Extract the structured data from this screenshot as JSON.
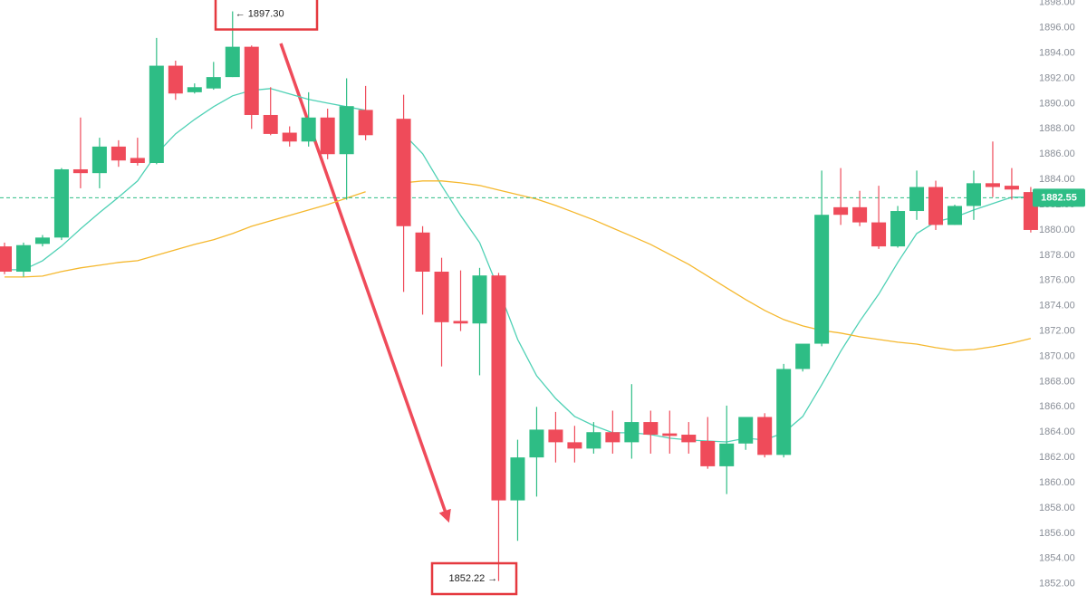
{
  "chart_data": {
    "type": "candlestick",
    "ylim": [
      1850.4,
      1898.2
    ],
    "yticks": [
      {
        "value": 1852,
        "label": "1852.00"
      },
      {
        "value": 1854,
        "label": "1854.00"
      },
      {
        "value": 1856,
        "label": "1856.00"
      },
      {
        "value": 1858,
        "label": "1858.00"
      },
      {
        "value": 1860,
        "label": "1860.00"
      },
      {
        "value": 1862,
        "label": "1862.00"
      },
      {
        "value": 1864,
        "label": "1864.00"
      },
      {
        "value": 1866,
        "label": "1866.00"
      },
      {
        "value": 1868,
        "label": "1868.00"
      },
      {
        "value": 1870,
        "label": "1870.00"
      },
      {
        "value": 1872,
        "label": "1872.00"
      },
      {
        "value": 1874,
        "label": "1874.00"
      },
      {
        "value": 1876,
        "label": "1876.00"
      },
      {
        "value": 1878,
        "label": "1878.00"
      },
      {
        "value": 1880,
        "label": "1880.00"
      },
      {
        "value": 1882,
        "label": "1882.00"
      },
      {
        "value": 1884,
        "label": "1884.00"
      },
      {
        "value": 1886,
        "label": "1886.00"
      },
      {
        "value": 1888,
        "label": "1888.00"
      },
      {
        "value": 1890,
        "label": "1890.00"
      },
      {
        "value": 1892,
        "label": "1892.00"
      },
      {
        "value": 1894,
        "label": "1894.00"
      },
      {
        "value": 1896,
        "label": "1896.00"
      },
      {
        "value": 1898,
        "label": "1898.00"
      }
    ],
    "grid": false,
    "up_color": "#2ebd85",
    "down_color": "#ef4b5a",
    "candles": {
      "open": [
        1878.7,
        1876.7,
        1878.9,
        1879.4,
        1884.8,
        1884.5,
        1886.6,
        1885.7,
        1885.3,
        1893.0,
        1890.9,
        1891.2,
        1892.1,
        1894.5,
        1889.1,
        1887.7,
        1887.0,
        1888.9,
        1886.0,
        1889.5,
        null,
        1888.8,
        1879.8,
        1876.7,
        1872.8,
        1872.6,
        1876.4,
        1858.6,
        1862.0,
        1864.2,
        1863.2,
        1862.7,
        1864.0,
        1863.2,
        1864.8,
        1863.9,
        1863.8,
        1863.3,
        1861.3,
        1863.1,
        1865.2,
        1862.2,
        1869.0,
        1871.0,
        1881.8,
        1881.8,
        1880.6,
        1878.7,
        1881.5,
        1883.4,
        1880.4,
        1881.9,
        1883.7,
        1883.5,
        1883.0
      ],
      "high": [
        1879.0,
        1879.0,
        1879.6,
        1884.9,
        1888.9,
        1887.3,
        1887.1,
        1887.3,
        1895.2,
        1893.4,
        1891.6,
        1893.3,
        1897.3,
        1894.6,
        1891.3,
        1888.2,
        1890.9,
        1889.6,
        1892.0,
        1891.4,
        null,
        1890.7,
        1880.3,
        1877.8,
        1876.8,
        1877.0,
        1876.6,
        1863.4,
        1866.0,
        1865.6,
        1864.5,
        1864.8,
        1865.7,
        1867.8,
        1865.7,
        1865.7,
        1864.8,
        1865.2,
        1866.1,
        1865.2,
        1865.5,
        1869.4,
        1870.4,
        1884.7,
        1884.9,
        1883.1,
        1883.5,
        1881.9,
        1884.7,
        1883.9,
        1882.0,
        1884.7,
        1887.0,
        1884.9,
        1883.4
      ],
      "low": [
        1876.5,
        1876.3,
        1878.7,
        1879.2,
        1883.3,
        1883.3,
        1885.0,
        1885.1,
        1885.2,
        1890.3,
        1890.8,
        1891.1,
        1892.1,
        1888.0,
        1887.5,
        1886.6,
        1886.6,
        1885.6,
        1882.4,
        1887.1,
        null,
        1875.1,
        1873.3,
        1869.2,
        1872.0,
        1868.5,
        1852.22,
        1855.4,
        1858.9,
        1861.6,
        1861.6,
        1862.3,
        1862.3,
        1861.9,
        1862.3,
        1862.3,
        1862.3,
        1861.1,
        1859.1,
        1862.6,
        1862.0,
        1862.0,
        1868.8,
        1870.8,
        1880.4,
        1880.3,
        1878.5,
        1878.6,
        1880.8,
        1880.0,
        1880.4,
        1880.8,
        1882.6,
        1882.4,
        1879.8
      ],
      "close": [
        1876.7,
        1878.8,
        1879.4,
        1884.8,
        1884.5,
        1886.6,
        1885.5,
        1885.3,
        1893.0,
        1890.8,
        1891.3,
        1892.1,
        1894.5,
        1889.1,
        1887.6,
        1887.0,
        1888.9,
        1886.0,
        1889.8,
        1887.5,
        null,
        1880.3,
        1876.7,
        1872.7,
        1872.6,
        1876.4,
        1858.6,
        1862.0,
        1864.2,
        1863.2,
        1862.7,
        1864.0,
        1863.2,
        1864.8,
        1863.8,
        1863.7,
        1863.2,
        1861.3,
        1863.1,
        1865.2,
        1862.2,
        1869.0,
        1871.0,
        1881.2,
        1881.2,
        1880.6,
        1878.7,
        1881.5,
        1883.4,
        1880.4,
        1881.9,
        1883.7,
        1883.4,
        1883.2,
        1880.0
      ]
    },
    "lines": [
      {
        "color": "#4fd1b5",
        "values": [
          1876.85,
          1876.85,
          1877.57,
          1878.72,
          1880.08,
          1881.37,
          1882.59,
          1883.88,
          1886.03,
          1887.61,
          1888.75,
          1889.76,
          1890.62,
          1891.05,
          1891.19,
          1890.76,
          1890.33,
          1890.04,
          1889.76,
          1889.47,
          null,
          1887.61,
          1886.03,
          1883.52,
          1881.15,
          1879.0,
          1875.28,
          1871.33,
          1868.47,
          1866.67,
          1865.24,
          1864.52,
          1863.95,
          1863.95,
          1863.81,
          1863.52,
          1863.38,
          1863.3,
          1863.23,
          1863.52,
          1863.38,
          1863.95,
          1865.24,
          1867.75,
          1870.4,
          1872.77,
          1874.92,
          1877.43,
          1879.72,
          1880.65,
          1881.01,
          1881.58,
          1882.09,
          1882.59,
          1882.59
        ]
      },
      {
        "color": "#f5b82e",
        "values": [
          1876.28,
          1876.28,
          1876.35,
          1876.71,
          1877.0,
          1877.21,
          1877.43,
          1877.57,
          1878.0,
          1878.43,
          1878.86,
          1879.22,
          1879.72,
          1880.29,
          1880.72,
          1881.15,
          1881.58,
          1882.01,
          1882.52,
          1883.02,
          null,
          1883.73,
          1883.88,
          1883.88,
          1883.73,
          1883.52,
          1883.16,
          1882.8,
          1882.44,
          1881.94,
          1881.37,
          1880.8,
          1880.15,
          1879.51,
          1878.86,
          1878.07,
          1877.28,
          1876.35,
          1875.42,
          1874.49,
          1873.63,
          1872.91,
          1872.41,
          1872.05,
          1871.84,
          1871.55,
          1871.33,
          1871.12,
          1870.97,
          1870.69,
          1870.47,
          1870.54,
          1870.76,
          1871.05,
          1871.41
        ]
      }
    ],
    "price_line": {
      "value": 1882.55,
      "color": "#2ebd85"
    },
    "annotations": [
      {
        "value": 1897.3,
        "label": "← 1897.30",
        "index": 12
      },
      {
        "value": 1852.22,
        "label": "1852.22 →",
        "index": 26
      }
    ]
  }
}
